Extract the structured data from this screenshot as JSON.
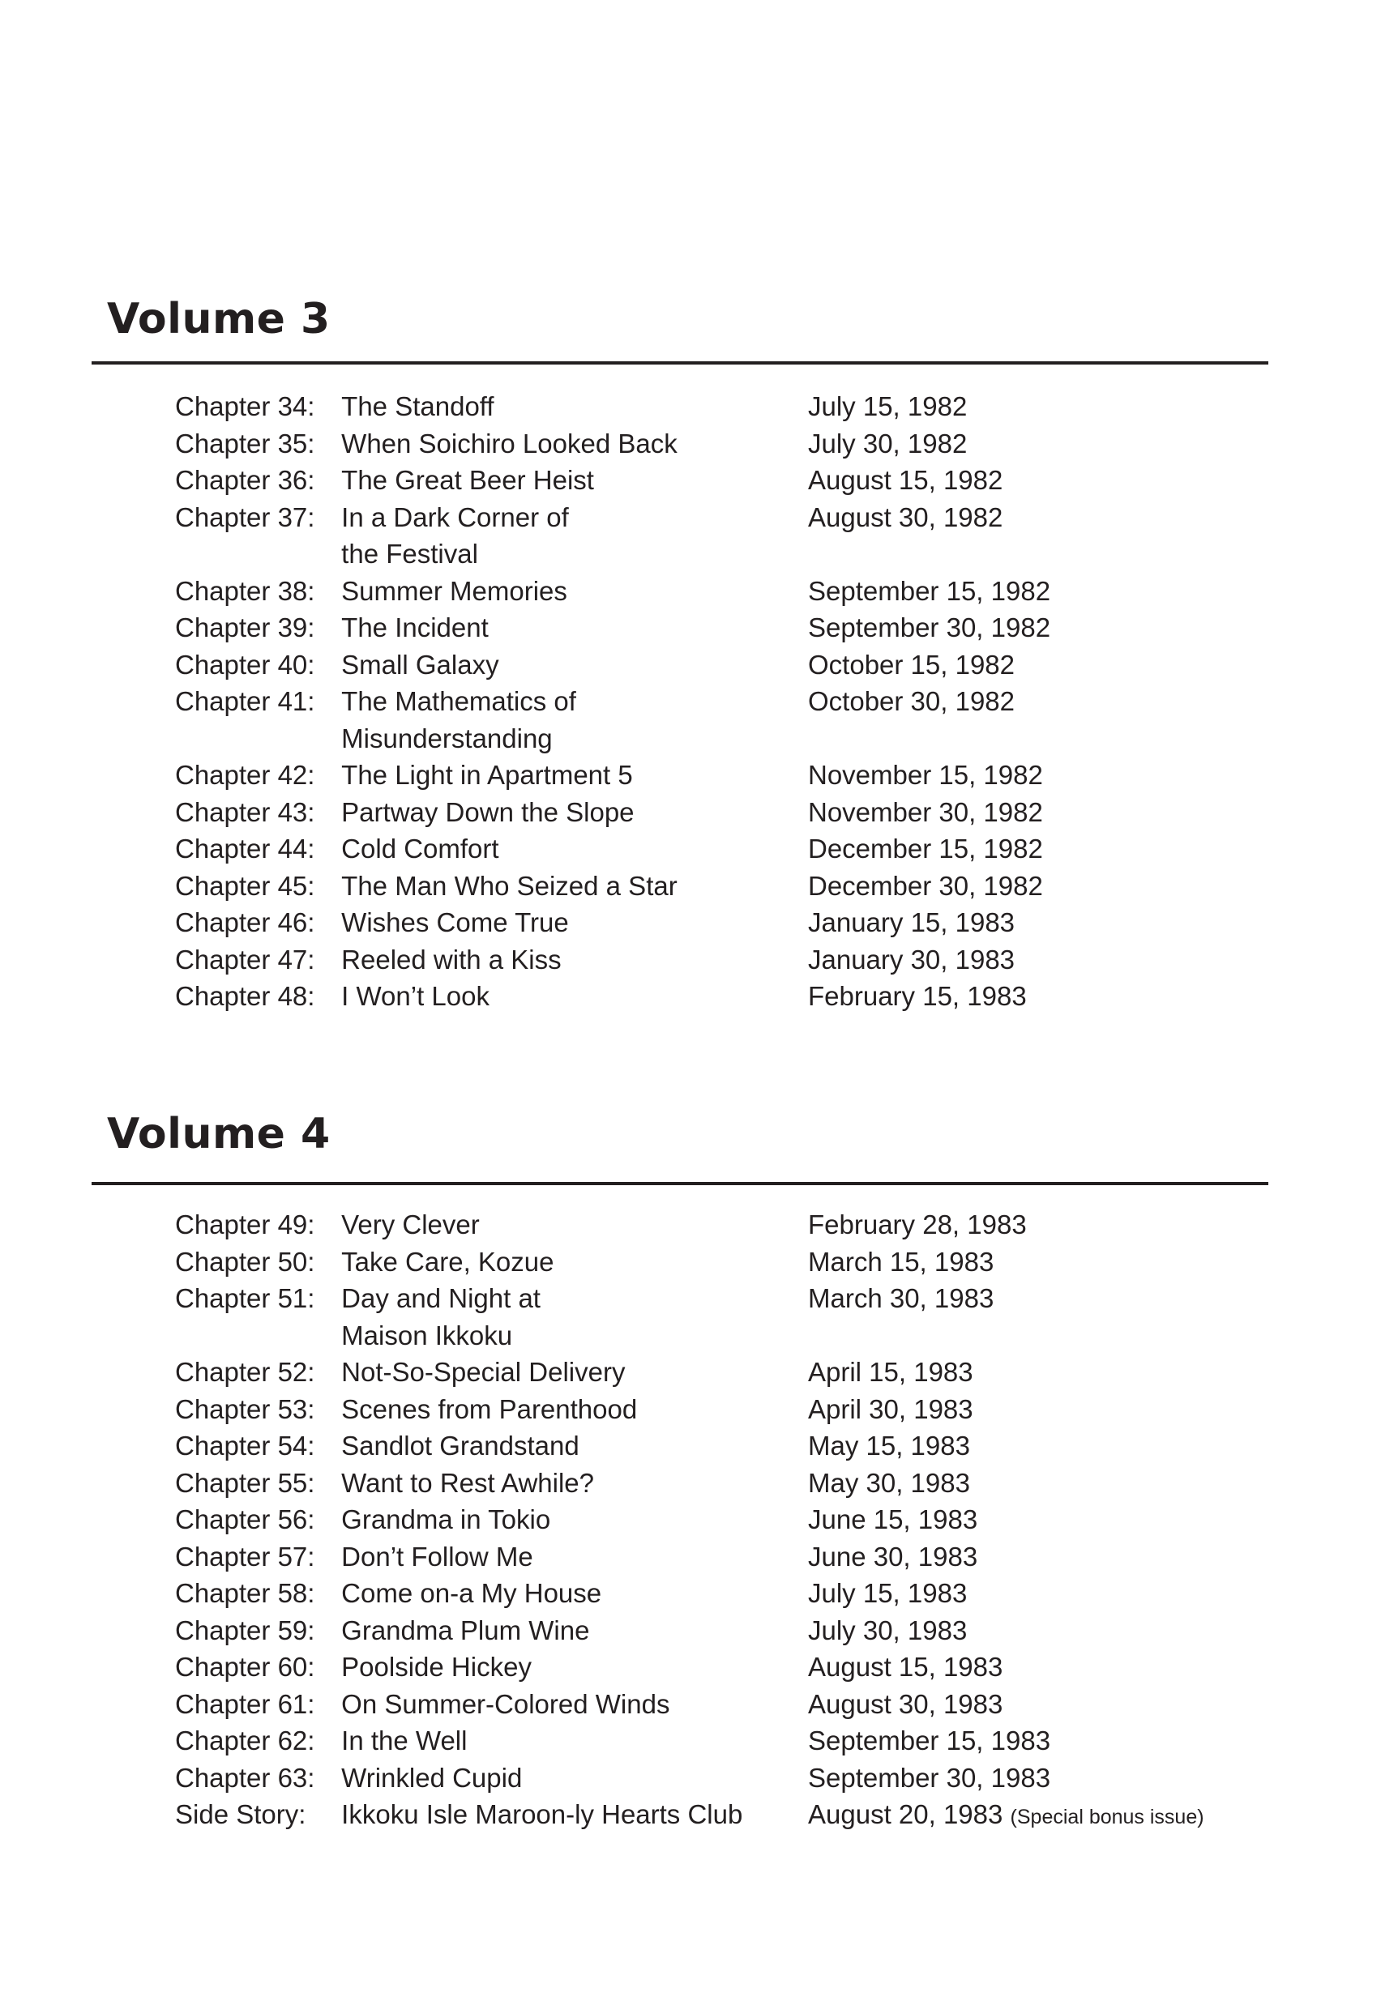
{
  "volumes": [
    {
      "title": "Volume 3",
      "chapters": [
        {
          "label": "Chapter 34:",
          "title": "The Standoff",
          "date": "July 15, 1982"
        },
        {
          "label": "Chapter 35:",
          "title": "When Soichiro Looked Back",
          "date": "July 30, 1982"
        },
        {
          "label": "Chapter 36:",
          "title": "The Great Beer Heist",
          "date": "August 15, 1982"
        },
        {
          "label": "Chapter 37:",
          "title": "In a Dark Corner of",
          "title2": "the Festival",
          "date": "August 30, 1982"
        },
        {
          "label": "Chapter 38:",
          "title": "Summer Memories",
          "date": "September 15, 1982"
        },
        {
          "label": "Chapter 39:",
          "title": "The Incident",
          "date": "September 30, 1982"
        },
        {
          "label": "Chapter 40:",
          "title": "Small Galaxy",
          "date": "October 15, 1982"
        },
        {
          "label": "Chapter 41:",
          "title": "The Mathematics of",
          "title2": "Misunderstanding",
          "date": "October 30, 1982"
        },
        {
          "label": "Chapter 42:",
          "title": "The Light in Apartment 5",
          "date": "November 15, 1982"
        },
        {
          "label": "Chapter 43:",
          "title": "Partway Down the Slope",
          "date": "November 30, 1982"
        },
        {
          "label": "Chapter 44:",
          "title": "Cold Comfort",
          "date": "December 15, 1982"
        },
        {
          "label": "Chapter 45:",
          "title": "The Man Who Seized a Star",
          "date": "December 30, 1982"
        },
        {
          "label": "Chapter 46:",
          "title": "Wishes Come True",
          "date": "January 15, 1983"
        },
        {
          "label": "Chapter 47:",
          "title": "Reeled with a Kiss",
          "date": "January 30, 1983"
        },
        {
          "label": "Chapter 48:",
          "title": "I Won’t Look",
          "date": "February 15, 1983"
        }
      ]
    },
    {
      "title": "Volume 4",
      "chapters": [
        {
          "label": "Chapter 49:",
          "title": "Very Clever",
          "date": "February 28, 1983"
        },
        {
          "label": "Chapter 50:",
          "title": "Take Care, Kozue",
          "date": "March 15, 1983"
        },
        {
          "label": "Chapter 51:",
          "title": "Day and Night at",
          "title2": "Maison Ikkoku",
          "date": "March 30, 1983"
        },
        {
          "label": "Chapter 52:",
          "title": "Not-So-Special Delivery",
          "date": "April 15, 1983"
        },
        {
          "label": "Chapter 53:",
          "title": "Scenes from Parenthood",
          "date": "April 30, 1983"
        },
        {
          "label": "Chapter 54:",
          "title": "Sandlot Grandstand",
          "date": "May 15, 1983"
        },
        {
          "label": "Chapter 55:",
          "title": "Want to Rest Awhile?",
          "date": "May 30, 1983"
        },
        {
          "label": "Chapter 56:",
          "title": "Grandma in Tokio",
          "date": "June 15, 1983"
        },
        {
          "label": "Chapter 57:",
          "title": "Don’t Follow Me",
          "date": "June 30, 1983"
        },
        {
          "label": "Chapter 58:",
          "title": "Come on-a My House",
          "date": "July 15, 1983"
        },
        {
          "label": "Chapter 59:",
          "title": "Grandma Plum Wine",
          "date": "July 30, 1983"
        },
        {
          "label": "Chapter 60:",
          "title": "Poolside Hickey",
          "date": "August 15, 1983"
        },
        {
          "label": "Chapter 61:",
          "title": "On Summer-Colored Winds",
          "date": "August 30, 1983"
        },
        {
          "label": "Chapter 62:",
          "title": "In the Well",
          "date": "September 15, 1983"
        },
        {
          "label": "Chapter 63:",
          "title": "Wrinkled Cupid",
          "date": "September 30, 1983"
        },
        {
          "label": "Side Story:",
          "title": "Ikkoku Isle Maroon-ly Hearts Club",
          "date": "August 20, 1983",
          "note": "(Special bonus issue)",
          "side": true
        }
      ]
    }
  ]
}
